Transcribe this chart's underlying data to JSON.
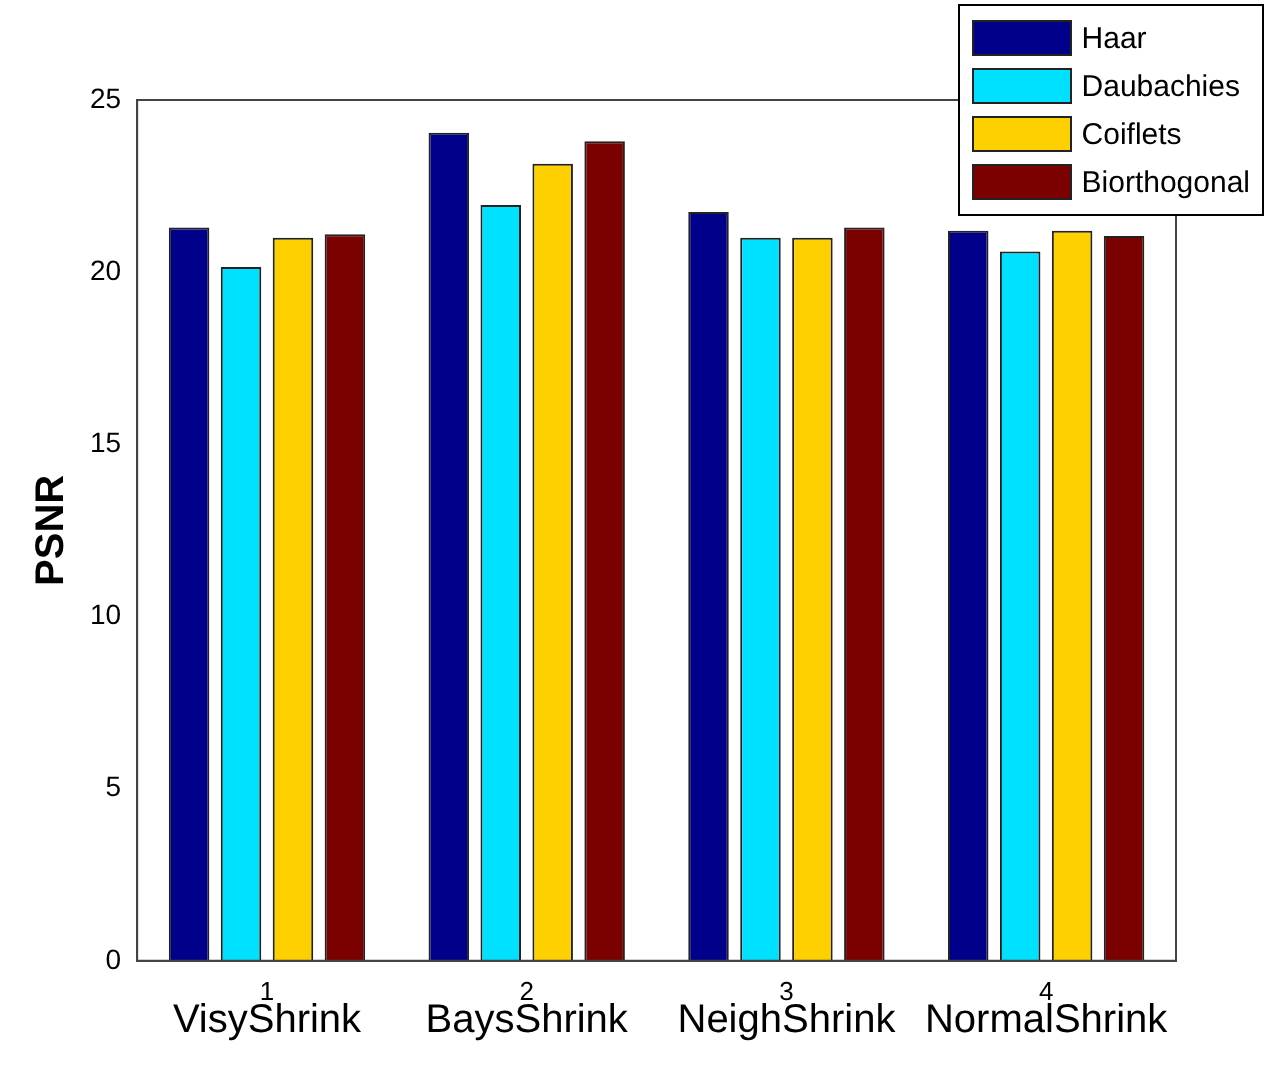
{
  "chart_data": {
    "type": "bar",
    "ylabel": "PSNR",
    "x": [
      1,
      2,
      3,
      4
    ],
    "xlim": [
      0.5,
      4.5
    ],
    "xticks": [
      1,
      2,
      3,
      4
    ],
    "ylim": [
      0,
      25
    ],
    "yticks": [
      0,
      5,
      10,
      15,
      20,
      25
    ],
    "grid": false,
    "legend": "top right",
    "series": [
      {
        "name": "Haar",
        "color": "#00008b",
        "values": [
          21.3,
          24.05,
          21.75,
          21.2
        ]
      },
      {
        "name": "Daubachies",
        "color": "#00e0ff",
        "values": [
          20.15,
          21.95,
          21.0,
          20.6
        ]
      },
      {
        "name": "Coiflets",
        "color": "#ffd000",
        "values": [
          21.0,
          23.15,
          21.0,
          21.2
        ]
      },
      {
        "name": "Biorthogonal",
        "color": "#7b0000",
        "values": [
          21.1,
          23.8,
          21.3,
          21.05
        ]
      }
    ],
    "annotations": [
      "VisyShrink",
      "BaysShrink",
      "NeighShrink",
      "NormalShrink"
    ]
  }
}
